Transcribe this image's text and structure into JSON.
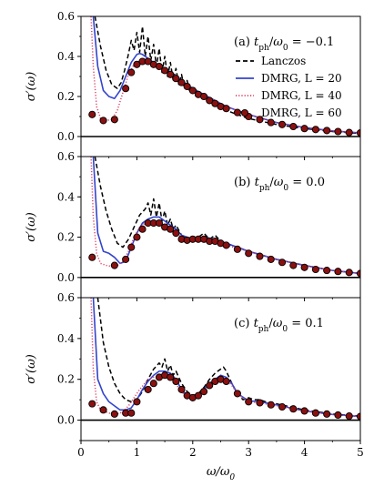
{
  "chart_data": [
    {
      "type": "line",
      "title": "(a) t_ph/ω_0 = −0.1",
      "ylabel": "σ′(ω)",
      "xlabel": "",
      "xlim": [
        0,
        5
      ],
      "ylim": [
        -0.1,
        0.6
      ],
      "yticks": [
        "0.0",
        "0.2",
        "0.4",
        "0.6"
      ],
      "xticks": [
        "",
        "",
        "",
        "",
        "",
        ""
      ],
      "legend": {
        "placement": "top-right",
        "entries": [
          "Lanczos",
          "DMRG, L = 20",
          "DMRG, L = 40",
          "DMRG, L = 60"
        ]
      },
      "series": [
        {
          "name": "Lanczos",
          "style": "dashed",
          "color": "#000000",
          "x": [
            0.25,
            0.35,
            0.45,
            0.55,
            0.65,
            0.72,
            0.78,
            0.84,
            0.9,
            0.95,
            1.0,
            1.05,
            1.1,
            1.15,
            1.2,
            1.25,
            1.3,
            1.35,
            1.4,
            1.45,
            1.5,
            1.55,
            1.6,
            1.65,
            1.7,
            1.75,
            1.8,
            1.85,
            1.9,
            1.95,
            2.0,
            2.1,
            2.2,
            2.3,
            2.4,
            2.5,
            2.7,
            3.0,
            3.5,
            4.0,
            4.5,
            5.0
          ],
          "y": [
            0.6,
            0.45,
            0.33,
            0.26,
            0.24,
            0.27,
            0.33,
            0.4,
            0.48,
            0.43,
            0.52,
            0.42,
            0.55,
            0.4,
            0.5,
            0.38,
            0.46,
            0.35,
            0.44,
            0.32,
            0.4,
            0.3,
            0.37,
            0.28,
            0.34,
            0.26,
            0.31,
            0.24,
            0.28,
            0.22,
            0.25,
            0.22,
            0.2,
            0.18,
            0.16,
            0.145,
            0.12,
            0.09,
            0.06,
            0.04,
            0.025,
            0.015
          ]
        },
        {
          "name": "DMRG, L = 20",
          "style": "solid",
          "color": "#3344cc",
          "x": [
            0.22,
            0.3,
            0.4,
            0.5,
            0.6,
            0.7,
            0.8,
            0.9,
            1.0,
            1.05,
            1.1,
            1.2,
            1.3,
            1.4,
            1.5,
            1.6,
            1.7,
            1.8,
            1.9,
            2.0,
            2.2,
            2.4,
            2.6,
            2.8,
            3.0,
            3.5,
            4.0,
            4.5,
            5.0
          ],
          "y": [
            0.6,
            0.35,
            0.23,
            0.2,
            0.19,
            0.23,
            0.3,
            0.37,
            0.41,
            0.415,
            0.41,
            0.39,
            0.37,
            0.35,
            0.34,
            0.32,
            0.3,
            0.28,
            0.26,
            0.24,
            0.21,
            0.18,
            0.15,
            0.13,
            0.11,
            0.07,
            0.045,
            0.028,
            0.018
          ]
        },
        {
          "name": "DMRG, L = 40",
          "style": "dotted",
          "color": "#dd4466",
          "x": [
            0.18,
            0.22,
            0.28,
            0.35,
            0.45,
            0.55,
            0.65,
            0.75,
            0.85,
            0.95,
            1.05,
            1.15,
            1.3,
            1.5,
            1.7,
            2.0,
            2.3,
            2.6,
            3.0,
            3.5,
            4.0,
            4.5,
            5.0
          ],
          "y": [
            0.6,
            0.35,
            0.15,
            0.09,
            0.08,
            0.085,
            0.13,
            0.22,
            0.31,
            0.36,
            0.38,
            0.38,
            0.36,
            0.33,
            0.29,
            0.24,
            0.19,
            0.15,
            0.11,
            0.07,
            0.045,
            0.028,
            0.018
          ]
        },
        {
          "name": "DMRG, L = 60",
          "style": "markers",
          "color": "#8b0000",
          "x": [
            0.2,
            0.4,
            0.6,
            0.8,
            0.9,
            1.0,
            1.1,
            1.2,
            1.3,
            1.4,
            1.5,
            1.6,
            1.7,
            1.8,
            1.9,
            2.0,
            2.1,
            2.2,
            2.3,
            2.4,
            2.5,
            2.6,
            2.8,
            3.0,
            3.2,
            3.4,
            3.6,
            3.8,
            4.0,
            4.2,
            4.4,
            4.6,
            4.8,
            5.0
          ],
          "y": [
            0.11,
            0.08,
            0.085,
            0.24,
            0.32,
            0.36,
            0.375,
            0.375,
            0.36,
            0.35,
            0.33,
            0.31,
            0.29,
            0.27,
            0.25,
            0.23,
            0.21,
            0.2,
            0.18,
            0.165,
            0.15,
            0.14,
            0.12,
            0.1,
            0.085,
            0.07,
            0.06,
            0.05,
            0.04,
            0.035,
            0.03,
            0.025,
            0.02,
            0.018
          ]
        }
      ]
    },
    {
      "type": "line",
      "title": "(b) t_ph/ω_0 = 0.0",
      "ylabel": "σ′(ω)",
      "xlabel": "",
      "xlim": [
        0,
        5
      ],
      "ylim": [
        -0.1,
        0.6
      ],
      "yticks": [
        "0.0",
        "0.2",
        "0.4",
        "0.6"
      ],
      "xticks": [
        "",
        "",
        "",
        "",
        "",
        ""
      ],
      "series": [
        {
          "name": "Lanczos",
          "style": "dashed",
          "color": "#000000",
          "x": [
            0.25,
            0.35,
            0.45,
            0.55,
            0.65,
            0.75,
            0.85,
            0.95,
            1.05,
            1.15,
            1.2,
            1.25,
            1.3,
            1.35,
            1.4,
            1.45,
            1.5,
            1.55,
            1.6,
            1.65,
            1.7,
            1.8,
            1.9,
            2.0,
            2.1,
            2.2,
            2.3,
            2.4,
            2.5,
            2.7,
            3.0,
            3.5,
            4.0,
            4.5,
            5.0
          ],
          "y": [
            0.6,
            0.45,
            0.33,
            0.24,
            0.17,
            0.15,
            0.19,
            0.25,
            0.31,
            0.34,
            0.37,
            0.31,
            0.39,
            0.3,
            0.37,
            0.28,
            0.33,
            0.26,
            0.29,
            0.24,
            0.26,
            0.21,
            0.19,
            0.185,
            0.2,
            0.22,
            0.19,
            0.21,
            0.18,
            0.16,
            0.13,
            0.09,
            0.06,
            0.035,
            0.02
          ]
        },
        {
          "name": "DMRG, L = 20",
          "style": "solid",
          "color": "#3344cc",
          "x": [
            0.22,
            0.3,
            0.4,
            0.5,
            0.6,
            0.7,
            0.8,
            0.9,
            1.0,
            1.1,
            1.2,
            1.3,
            1.4,
            1.5,
            1.6,
            1.7,
            1.8,
            2.0,
            2.2,
            2.4,
            2.6,
            2.8,
            3.0,
            3.5,
            4.0,
            4.5,
            5.0
          ],
          "y": [
            0.6,
            0.22,
            0.13,
            0.12,
            0.1,
            0.07,
            0.08,
            0.15,
            0.22,
            0.27,
            0.29,
            0.3,
            0.3,
            0.28,
            0.26,
            0.24,
            0.21,
            0.19,
            0.2,
            0.19,
            0.17,
            0.15,
            0.13,
            0.09,
            0.06,
            0.035,
            0.02
          ]
        },
        {
          "name": "DMRG, L = 40",
          "style": "dotted",
          "color": "#dd4466",
          "x": [
            0.18,
            0.22,
            0.28,
            0.35,
            0.45,
            0.55,
            0.65,
            0.75,
            0.85,
            0.95,
            1.05,
            1.2,
            1.4,
            1.6,
            1.8,
            2.0,
            2.2,
            2.4,
            2.6,
            3.0,
            3.5,
            4.0,
            4.5,
            5.0
          ],
          "y": [
            0.6,
            0.3,
            0.12,
            0.07,
            0.06,
            0.055,
            0.06,
            0.08,
            0.13,
            0.2,
            0.25,
            0.28,
            0.27,
            0.24,
            0.2,
            0.19,
            0.2,
            0.18,
            0.16,
            0.13,
            0.09,
            0.06,
            0.035,
            0.02
          ]
        },
        {
          "name": "DMRG, L = 60",
          "style": "markers",
          "color": "#8b0000",
          "x": [
            0.2,
            0.6,
            0.8,
            0.9,
            1.0,
            1.1,
            1.2,
            1.3,
            1.4,
            1.5,
            1.6,
            1.7,
            1.8,
            1.9,
            2.0,
            2.1,
            2.2,
            2.3,
            2.4,
            2.5,
            2.6,
            2.8,
            3.0,
            3.2,
            3.4,
            3.6,
            3.8,
            4.0,
            4.2,
            4.4,
            4.6,
            4.8,
            5.0
          ],
          "y": [
            0.1,
            0.06,
            0.09,
            0.15,
            0.2,
            0.24,
            0.27,
            0.27,
            0.27,
            0.25,
            0.24,
            0.22,
            0.19,
            0.185,
            0.19,
            0.19,
            0.19,
            0.18,
            0.18,
            0.17,
            0.16,
            0.14,
            0.12,
            0.105,
            0.09,
            0.075,
            0.06,
            0.05,
            0.04,
            0.035,
            0.03,
            0.025,
            0.02
          ]
        }
      ]
    },
    {
      "type": "line",
      "title": "(c) t_ph/ω_0 = 0.1",
      "ylabel": "σ′(ω)",
      "xlabel": "ω/ω_0",
      "xlim": [
        0,
        5
      ],
      "ylim": [
        -0.1,
        0.6
      ],
      "yticks": [
        "0.0",
        "0.2",
        "0.4",
        "0.6"
      ],
      "xticks": [
        "0",
        "1",
        "2",
        "3",
        "4",
        "5"
      ],
      "series": [
        {
          "name": "Lanczos",
          "style": "dashed",
          "color": "#000000",
          "x": [
            0.3,
            0.4,
            0.5,
            0.6,
            0.7,
            0.8,
            0.9,
            1.0,
            1.1,
            1.2,
            1.3,
            1.4,
            1.45,
            1.5,
            1.55,
            1.6,
            1.65,
            1.7,
            1.8,
            1.9,
            2.0,
            2.1,
            2.2,
            2.3,
            2.4,
            2.5,
            2.55,
            2.6,
            2.7,
            2.8,
            2.9,
            3.0,
            3.1,
            3.2,
            3.3,
            3.5,
            4.0,
            4.5,
            5.0
          ],
          "y": [
            0.6,
            0.38,
            0.26,
            0.18,
            0.13,
            0.1,
            0.09,
            0.1,
            0.14,
            0.2,
            0.25,
            0.28,
            0.26,
            0.3,
            0.24,
            0.27,
            0.22,
            0.24,
            0.18,
            0.14,
            0.12,
            0.13,
            0.16,
            0.2,
            0.23,
            0.25,
            0.26,
            0.24,
            0.18,
            0.13,
            0.1,
            0.11,
            0.1,
            0.1,
            0.09,
            0.08,
            0.05,
            0.03,
            0.02
          ]
        },
        {
          "name": "DMRG, L = 20",
          "style": "solid",
          "color": "#3344cc",
          "x": [
            0.22,
            0.3,
            0.4,
            0.5,
            0.6,
            0.7,
            0.8,
            0.9,
            1.0,
            1.1,
            1.2,
            1.3,
            1.4,
            1.5,
            1.6,
            1.7,
            1.8,
            1.9,
            2.0,
            2.1,
            2.2,
            2.3,
            2.4,
            2.5,
            2.6,
            2.7,
            2.8,
            3.0,
            3.2,
            3.5,
            4.0,
            4.5,
            5.0
          ],
          "y": [
            0.6,
            0.2,
            0.13,
            0.09,
            0.07,
            0.05,
            0.05,
            0.06,
            0.1,
            0.15,
            0.19,
            0.22,
            0.24,
            0.24,
            0.23,
            0.2,
            0.15,
            0.12,
            0.11,
            0.12,
            0.15,
            0.18,
            0.2,
            0.22,
            0.21,
            0.18,
            0.13,
            0.095,
            0.09,
            0.075,
            0.045,
            0.028,
            0.018
          ]
        },
        {
          "name": "DMRG, L = 40",
          "style": "dotted",
          "color": "#dd4466",
          "x": [
            0.18,
            0.22,
            0.28,
            0.35,
            0.45,
            0.55,
            0.65,
            0.75,
            0.85,
            0.95,
            1.05,
            1.2,
            1.4,
            1.6,
            1.8,
            1.9,
            2.0,
            2.2,
            2.4,
            2.5,
            2.6,
            2.7,
            2.8,
            3.0,
            3.2,
            3.5,
            4.0,
            4.5,
            5.0
          ],
          "y": [
            0.6,
            0.25,
            0.09,
            0.05,
            0.04,
            0.03,
            0.03,
            0.04,
            0.07,
            0.11,
            0.15,
            0.2,
            0.22,
            0.21,
            0.14,
            0.11,
            0.11,
            0.14,
            0.19,
            0.21,
            0.2,
            0.17,
            0.13,
            0.09,
            0.085,
            0.07,
            0.045,
            0.028,
            0.018
          ]
        },
        {
          "name": "DMRG, L = 60",
          "style": "markers",
          "color": "#8b0000",
          "x": [
            0.2,
            0.4,
            0.6,
            0.8,
            0.9,
            1.0,
            1.2,
            1.3,
            1.4,
            1.5,
            1.6,
            1.7,
            1.8,
            1.9,
            2.0,
            2.1,
            2.2,
            2.3,
            2.4,
            2.5,
            2.6,
            2.8,
            3.0,
            3.2,
            3.4,
            3.6,
            3.8,
            4.0,
            4.2,
            4.4,
            4.6,
            4.8,
            5.0
          ],
          "y": [
            0.08,
            0.05,
            0.03,
            0.035,
            0.035,
            0.09,
            0.15,
            0.18,
            0.21,
            0.22,
            0.21,
            0.19,
            0.15,
            0.12,
            0.11,
            0.12,
            0.14,
            0.17,
            0.19,
            0.2,
            0.19,
            0.13,
            0.09,
            0.085,
            0.075,
            0.065,
            0.055,
            0.045,
            0.035,
            0.03,
            0.025,
            0.02,
            0.018
          ]
        }
      ]
    }
  ]
}
